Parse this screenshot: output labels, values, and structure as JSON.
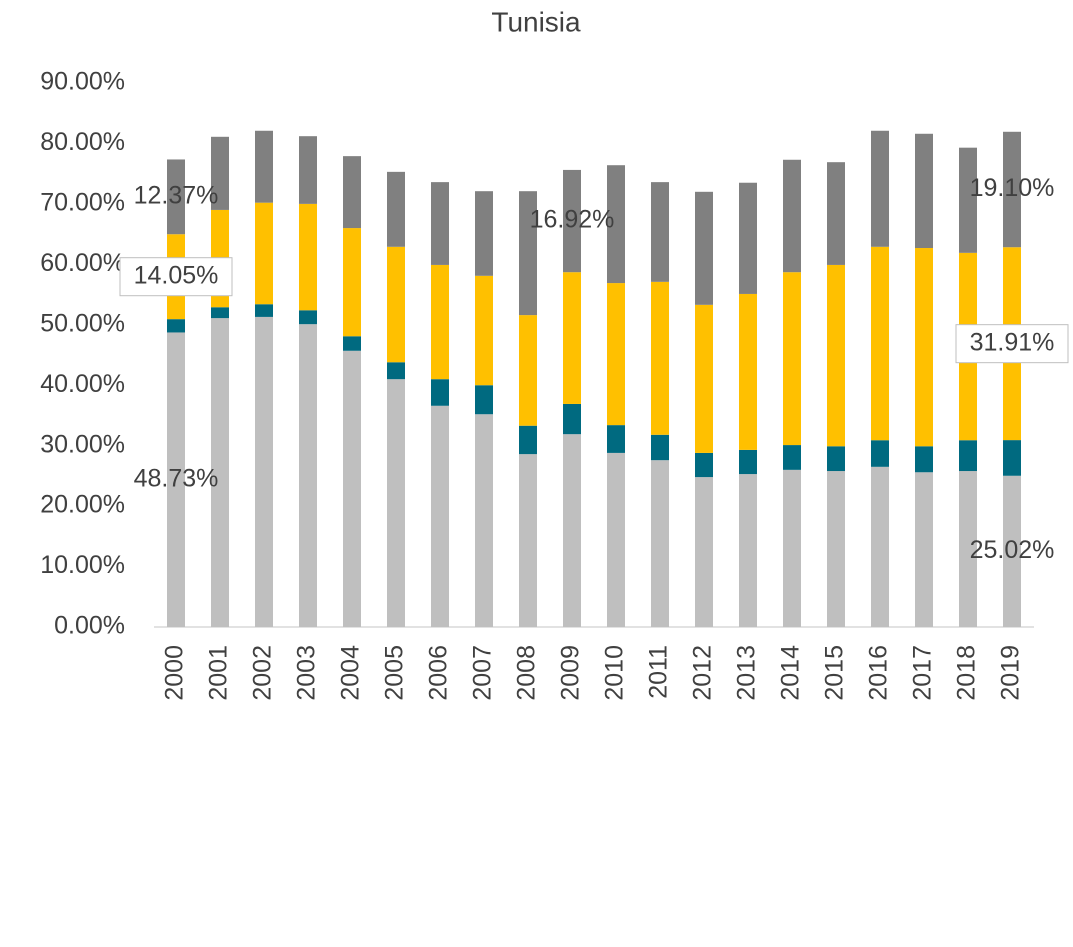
{
  "chart_data": {
    "type": "stacked_bar",
    "title": "Tunisia",
    "categories": [
      "2000",
      "2001",
      "2002",
      "2003",
      "2004",
      "2005",
      "2006",
      "2007",
      "2008",
      "2009",
      "2010",
      "2011",
      "2012",
      "2013",
      "2014",
      "2015",
      "2016",
      "2017",
      "2018",
      "2019"
    ],
    "series": [
      {
        "color": "#bfbfbf",
        "values": [
          48.73,
          51.1,
          51.3,
          50.1,
          45.7,
          41.0,
          36.6,
          35.2,
          28.6,
          31.9,
          28.8,
          27.6,
          24.8,
          25.3,
          26.0,
          25.8,
          26.5,
          25.6,
          25.8,
          25.02
        ],
        "value_labels": [
          "48.73%",
          null,
          null,
          null,
          null,
          null,
          null,
          null,
          null,
          null,
          null,
          null,
          null,
          null,
          null,
          null,
          null,
          null,
          null,
          "25.02%"
        ]
      },
      {
        "color": "#006a80",
        "values": [
          2.2,
          1.8,
          2.1,
          2.3,
          2.4,
          2.8,
          4.4,
          4.8,
          4.7,
          5.0,
          4.6,
          4.2,
          4.0,
          4.0,
          4.1,
          4.1,
          4.4,
          4.3,
          5.1,
          5.9
        ]
      },
      {
        "color": "#ffc000",
        "values": [
          14.05,
          16.1,
          16.8,
          17.6,
          17.9,
          19.1,
          18.9,
          18.1,
          18.3,
          21.8,
          23.5,
          25.3,
          24.5,
          25.8,
          28.6,
          30.0,
          32.0,
          32.8,
          31.0,
          31.91
        ],
        "value_labels": [
          "14.05%",
          null,
          null,
          null,
          null,
          null,
          null,
          null,
          null,
          null,
          null,
          null,
          null,
          null,
          null,
          null,
          null,
          null,
          null,
          "31.91%"
        ]
      },
      {
        "color": "#808080",
        "values": [
          12.37,
          12.1,
          11.9,
          11.2,
          11.9,
          12.4,
          13.7,
          14.0,
          20.5,
          16.92,
          19.5,
          16.5,
          18.7,
          18.4,
          18.6,
          17.0,
          19.2,
          18.9,
          17.4,
          19.1
        ],
        "value_labels": [
          "12.37%",
          null,
          null,
          null,
          null,
          null,
          null,
          null,
          null,
          "16.92%",
          null,
          null,
          null,
          null,
          null,
          null,
          null,
          null,
          null,
          "19.10%"
        ]
      }
    ],
    "ylim": [
      0,
      90
    ],
    "yticks": [
      {
        "value": 0,
        "label": "0.00%"
      },
      {
        "value": 10,
        "label": "10.00%"
      },
      {
        "value": 20,
        "label": "20.00%"
      },
      {
        "value": 30,
        "label": "30.00%"
      },
      {
        "value": 40,
        "label": "40.00%"
      },
      {
        "value": 50,
        "label": "50.00%"
      },
      {
        "value": 60,
        "label": "60.00%"
      },
      {
        "value": 70,
        "label": "70.00%"
      },
      {
        "value": 80,
        "label": "80.00%"
      },
      {
        "value": 90,
        "label": "90.00%"
      }
    ]
  }
}
